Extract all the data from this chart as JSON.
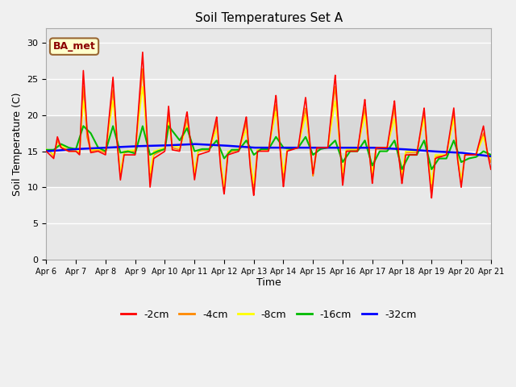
{
  "title": "Soil Temperatures Set A",
  "xlabel": "Time",
  "ylabel": "Soil Temperature (C)",
  "annotation": "BA_met",
  "ylim": [
    0,
    32
  ],
  "yticks": [
    0,
    5,
    10,
    15,
    20,
    25,
    30
  ],
  "colors": {
    "-2cm": "#ff0000",
    "-4cm": "#ff8800",
    "-8cm": "#ffff00",
    "-16cm": "#00bb00",
    "-32cm": "#0000ff"
  },
  "legend_labels": [
    "-2cm",
    "-4cm",
    "-8cm",
    "-16cm",
    "-32cm"
  ],
  "fig_bg": "#f0f0f0",
  "plot_bg": "#e8e8e8",
  "band_bg": "#d8d8d8",
  "x_tick_labels": [
    "Apr 6",
    "Apr 7",
    "Apr 8",
    "Apr 9",
    "Apr 10",
    "Apr 11",
    "Apr 12",
    "Apr 13",
    "Apr 14",
    "Apr 15",
    "Apr 16",
    "Apr 17",
    "Apr 18",
    "Apr 19",
    "Apr 20",
    "Apr 21"
  ],
  "x_ticks": [
    0,
    24,
    48,
    72,
    96,
    120,
    144,
    168,
    192,
    216,
    240,
    264,
    288,
    312,
    336,
    360
  ],
  "kp_2cm": [
    [
      0,
      15.0
    ],
    [
      3,
      14.5
    ],
    [
      6,
      14.0
    ],
    [
      9,
      17.0
    ],
    [
      12,
      15.5
    ],
    [
      18,
      15.0
    ],
    [
      24,
      15.0
    ],
    [
      27,
      14.5
    ],
    [
      30,
      26.2
    ],
    [
      33,
      18.0
    ],
    [
      36,
      14.8
    ],
    [
      42,
      15.0
    ],
    [
      48,
      14.5
    ],
    [
      54,
      25.3
    ],
    [
      57,
      17.0
    ],
    [
      60,
      11.0
    ],
    [
      63,
      14.5
    ],
    [
      72,
      14.5
    ],
    [
      78,
      28.8
    ],
    [
      81,
      19.0
    ],
    [
      84,
      10.0
    ],
    [
      87,
      14.0
    ],
    [
      96,
      15.0
    ],
    [
      99,
      21.3
    ],
    [
      102,
      15.2
    ],
    [
      108,
      15.0
    ],
    [
      114,
      20.5
    ],
    [
      117,
      16.0
    ],
    [
      120,
      11.0
    ],
    [
      123,
      14.5
    ],
    [
      132,
      15.0
    ],
    [
      138,
      19.8
    ],
    [
      141,
      13.0
    ],
    [
      144,
      9.0
    ],
    [
      147,
      14.5
    ],
    [
      156,
      15.0
    ],
    [
      162,
      19.8
    ],
    [
      165,
      13.0
    ],
    [
      168,
      8.8
    ],
    [
      171,
      15.0
    ],
    [
      180,
      15.0
    ],
    [
      186,
      22.8
    ],
    [
      189,
      16.0
    ],
    [
      192,
      10.0
    ],
    [
      195,
      15.0
    ],
    [
      204,
      15.5
    ],
    [
      210,
      22.5
    ],
    [
      213,
      17.0
    ],
    [
      216,
      11.8
    ],
    [
      219,
      15.5
    ],
    [
      228,
      15.5
    ],
    [
      234,
      25.6
    ],
    [
      237,
      18.0
    ],
    [
      240,
      10.2
    ],
    [
      243,
      15.0
    ],
    [
      252,
      15.0
    ],
    [
      258,
      22.2
    ],
    [
      261,
      16.0
    ],
    [
      264,
      10.5
    ],
    [
      267,
      15.5
    ],
    [
      276,
      15.5
    ],
    [
      282,
      22.0
    ],
    [
      285,
      15.0
    ],
    [
      288,
      10.5
    ],
    [
      291,
      14.5
    ],
    [
      300,
      14.5
    ],
    [
      306,
      21.0
    ],
    [
      309,
      14.0
    ],
    [
      312,
      8.5
    ],
    [
      315,
      14.0
    ],
    [
      324,
      14.5
    ],
    [
      330,
      21.0
    ],
    [
      333,
      14.0
    ],
    [
      336,
      10.0
    ],
    [
      339,
      14.5
    ],
    [
      348,
      14.5
    ],
    [
      354,
      18.5
    ],
    [
      357,
      15.0
    ],
    [
      360,
      12.5
    ]
  ],
  "kp_4cm": [
    [
      0,
      15.2
    ],
    [
      3,
      15.0
    ],
    [
      6,
      14.3
    ],
    [
      9,
      16.5
    ],
    [
      12,
      15.5
    ],
    [
      18,
      15.0
    ],
    [
      24,
      15.0
    ],
    [
      27,
      14.8
    ],
    [
      30,
      24.0
    ],
    [
      33,
      17.0
    ],
    [
      36,
      15.0
    ],
    [
      42,
      15.2
    ],
    [
      48,
      14.8
    ],
    [
      54,
      23.5
    ],
    [
      57,
      17.0
    ],
    [
      60,
      11.5
    ],
    [
      63,
      14.8
    ],
    [
      72,
      15.0
    ],
    [
      78,
      26.5
    ],
    [
      81,
      18.0
    ],
    [
      84,
      11.0
    ],
    [
      87,
      14.5
    ],
    [
      96,
      15.3
    ],
    [
      99,
      20.0
    ],
    [
      102,
      15.5
    ],
    [
      108,
      15.2
    ],
    [
      114,
      19.5
    ],
    [
      117,
      16.2
    ],
    [
      120,
      11.5
    ],
    [
      123,
      15.0
    ],
    [
      132,
      15.2
    ],
    [
      138,
      19.0
    ],
    [
      141,
      13.5
    ],
    [
      144,
      9.5
    ],
    [
      147,
      14.8
    ],
    [
      156,
      15.2
    ],
    [
      162,
      19.0
    ],
    [
      165,
      13.5
    ],
    [
      168,
      9.5
    ],
    [
      171,
      15.2
    ],
    [
      180,
      15.2
    ],
    [
      186,
      21.5
    ],
    [
      189,
      16.0
    ],
    [
      192,
      11.0
    ],
    [
      195,
      15.2
    ],
    [
      204,
      15.5
    ],
    [
      210,
      21.0
    ],
    [
      213,
      16.5
    ],
    [
      216,
      11.5
    ],
    [
      219,
      15.3
    ],
    [
      228,
      15.5
    ],
    [
      234,
      24.0
    ],
    [
      237,
      17.5
    ],
    [
      240,
      11.0
    ],
    [
      243,
      15.2
    ],
    [
      252,
      15.2
    ],
    [
      258,
      21.0
    ],
    [
      261,
      15.5
    ],
    [
      264,
      11.0
    ],
    [
      267,
      15.3
    ],
    [
      276,
      15.3
    ],
    [
      282,
      21.0
    ],
    [
      285,
      15.0
    ],
    [
      288,
      11.0
    ],
    [
      291,
      14.8
    ],
    [
      300,
      14.8
    ],
    [
      306,
      20.0
    ],
    [
      309,
      14.0
    ],
    [
      312,
      9.5
    ],
    [
      315,
      14.2
    ],
    [
      324,
      14.5
    ],
    [
      330,
      20.0
    ],
    [
      333,
      14.0
    ],
    [
      336,
      10.5
    ],
    [
      339,
      14.5
    ],
    [
      348,
      14.5
    ],
    [
      354,
      17.5
    ],
    [
      357,
      15.0
    ],
    [
      360,
      13.5
    ]
  ],
  "kp_8cm": [
    [
      0,
      15.3
    ],
    [
      3,
      15.0
    ],
    [
      6,
      14.5
    ],
    [
      9,
      15.8
    ],
    [
      12,
      15.8
    ],
    [
      18,
      15.2
    ],
    [
      24,
      15.0
    ],
    [
      27,
      15.0
    ],
    [
      30,
      22.0
    ],
    [
      33,
      18.0
    ],
    [
      36,
      15.2
    ],
    [
      42,
      15.3
    ],
    [
      48,
      15.0
    ],
    [
      54,
      22.0
    ],
    [
      57,
      17.5
    ],
    [
      60,
      12.0
    ],
    [
      63,
      15.0
    ],
    [
      72,
      15.2
    ],
    [
      78,
      24.0
    ],
    [
      81,
      18.0
    ],
    [
      84,
      12.0
    ],
    [
      87,
      15.0
    ],
    [
      96,
      15.5
    ],
    [
      99,
      19.0
    ],
    [
      102,
      15.8
    ],
    [
      108,
      15.5
    ],
    [
      114,
      18.5
    ],
    [
      117,
      16.5
    ],
    [
      120,
      12.0
    ],
    [
      123,
      15.2
    ],
    [
      132,
      15.3
    ],
    [
      138,
      18.0
    ],
    [
      141,
      14.0
    ],
    [
      144,
      10.0
    ],
    [
      147,
      15.0
    ],
    [
      156,
      15.3
    ],
    [
      162,
      18.0
    ],
    [
      165,
      14.0
    ],
    [
      168,
      10.5
    ],
    [
      171,
      15.3
    ],
    [
      180,
      15.3
    ],
    [
      186,
      20.5
    ],
    [
      189,
      16.5
    ],
    [
      192,
      12.0
    ],
    [
      195,
      15.3
    ],
    [
      204,
      15.5
    ],
    [
      210,
      20.0
    ],
    [
      213,
      16.8
    ],
    [
      216,
      12.0
    ],
    [
      219,
      15.5
    ],
    [
      228,
      15.5
    ],
    [
      234,
      22.0
    ],
    [
      237,
      17.0
    ],
    [
      240,
      12.0
    ],
    [
      243,
      15.3
    ],
    [
      252,
      15.3
    ],
    [
      258,
      20.0
    ],
    [
      261,
      15.8
    ],
    [
      264,
      12.0
    ],
    [
      267,
      15.5
    ],
    [
      276,
      15.5
    ],
    [
      282,
      19.5
    ],
    [
      285,
      15.5
    ],
    [
      288,
      12.0
    ],
    [
      291,
      15.0
    ],
    [
      300,
      15.0
    ],
    [
      306,
      19.5
    ],
    [
      309,
      14.5
    ],
    [
      312,
      10.5
    ],
    [
      315,
      14.5
    ],
    [
      324,
      14.5
    ],
    [
      330,
      19.5
    ],
    [
      333,
      14.5
    ],
    [
      336,
      11.0
    ],
    [
      339,
      14.5
    ],
    [
      348,
      14.5
    ],
    [
      354,
      17.0
    ],
    [
      357,
      15.0
    ],
    [
      360,
      14.0
    ]
  ],
  "kp_16cm": [
    [
      0,
      15.2
    ],
    [
      6,
      15.2
    ],
    [
      12,
      16.0
    ],
    [
      18,
      15.5
    ],
    [
      24,
      15.3
    ],
    [
      30,
      18.5
    ],
    [
      36,
      17.5
    ],
    [
      42,
      15.5
    ],
    [
      48,
      15.0
    ],
    [
      54,
      18.5
    ],
    [
      60,
      14.8
    ],
    [
      66,
      15.0
    ],
    [
      72,
      14.7
    ],
    [
      78,
      18.5
    ],
    [
      84,
      14.5
    ],
    [
      90,
      15.0
    ],
    [
      96,
      15.3
    ],
    [
      99,
      18.5
    ],
    [
      108,
      16.5
    ],
    [
      114,
      18.2
    ],
    [
      120,
      15.0
    ],
    [
      126,
      15.3
    ],
    [
      132,
      15.3
    ],
    [
      138,
      16.5
    ],
    [
      144,
      14.0
    ],
    [
      150,
      15.2
    ],
    [
      156,
      15.2
    ],
    [
      162,
      16.5
    ],
    [
      168,
      14.5
    ],
    [
      174,
      15.3
    ],
    [
      180,
      15.3
    ],
    [
      186,
      17.0
    ],
    [
      192,
      15.5
    ],
    [
      198,
      15.3
    ],
    [
      204,
      15.5
    ],
    [
      210,
      17.0
    ],
    [
      216,
      14.5
    ],
    [
      222,
      15.3
    ],
    [
      228,
      15.5
    ],
    [
      234,
      16.5
    ],
    [
      240,
      13.5
    ],
    [
      246,
      15.0
    ],
    [
      252,
      15.0
    ],
    [
      258,
      16.5
    ],
    [
      264,
      13.0
    ],
    [
      270,
      15.0
    ],
    [
      276,
      15.0
    ],
    [
      282,
      16.5
    ],
    [
      288,
      12.5
    ],
    [
      294,
      14.5
    ],
    [
      300,
      14.5
    ],
    [
      306,
      16.5
    ],
    [
      312,
      12.5
    ],
    [
      318,
      14.0
    ],
    [
      324,
      14.0
    ],
    [
      330,
      16.5
    ],
    [
      336,
      13.5
    ],
    [
      342,
      14.0
    ],
    [
      348,
      14.2
    ],
    [
      354,
      15.0
    ],
    [
      360,
      14.5
    ]
  ],
  "kp_32cm": [
    [
      0,
      15.0
    ],
    [
      24,
      15.3
    ],
    [
      48,
      15.5
    ],
    [
      72,
      15.7
    ],
    [
      96,
      15.8
    ],
    [
      120,
      16.0
    ],
    [
      144,
      15.8
    ],
    [
      168,
      15.5
    ],
    [
      192,
      15.5
    ],
    [
      216,
      15.5
    ],
    [
      240,
      15.5
    ],
    [
      264,
      15.5
    ],
    [
      288,
      15.3
    ],
    [
      312,
      15.0
    ],
    [
      336,
      14.8
    ],
    [
      360,
      14.3
    ]
  ]
}
